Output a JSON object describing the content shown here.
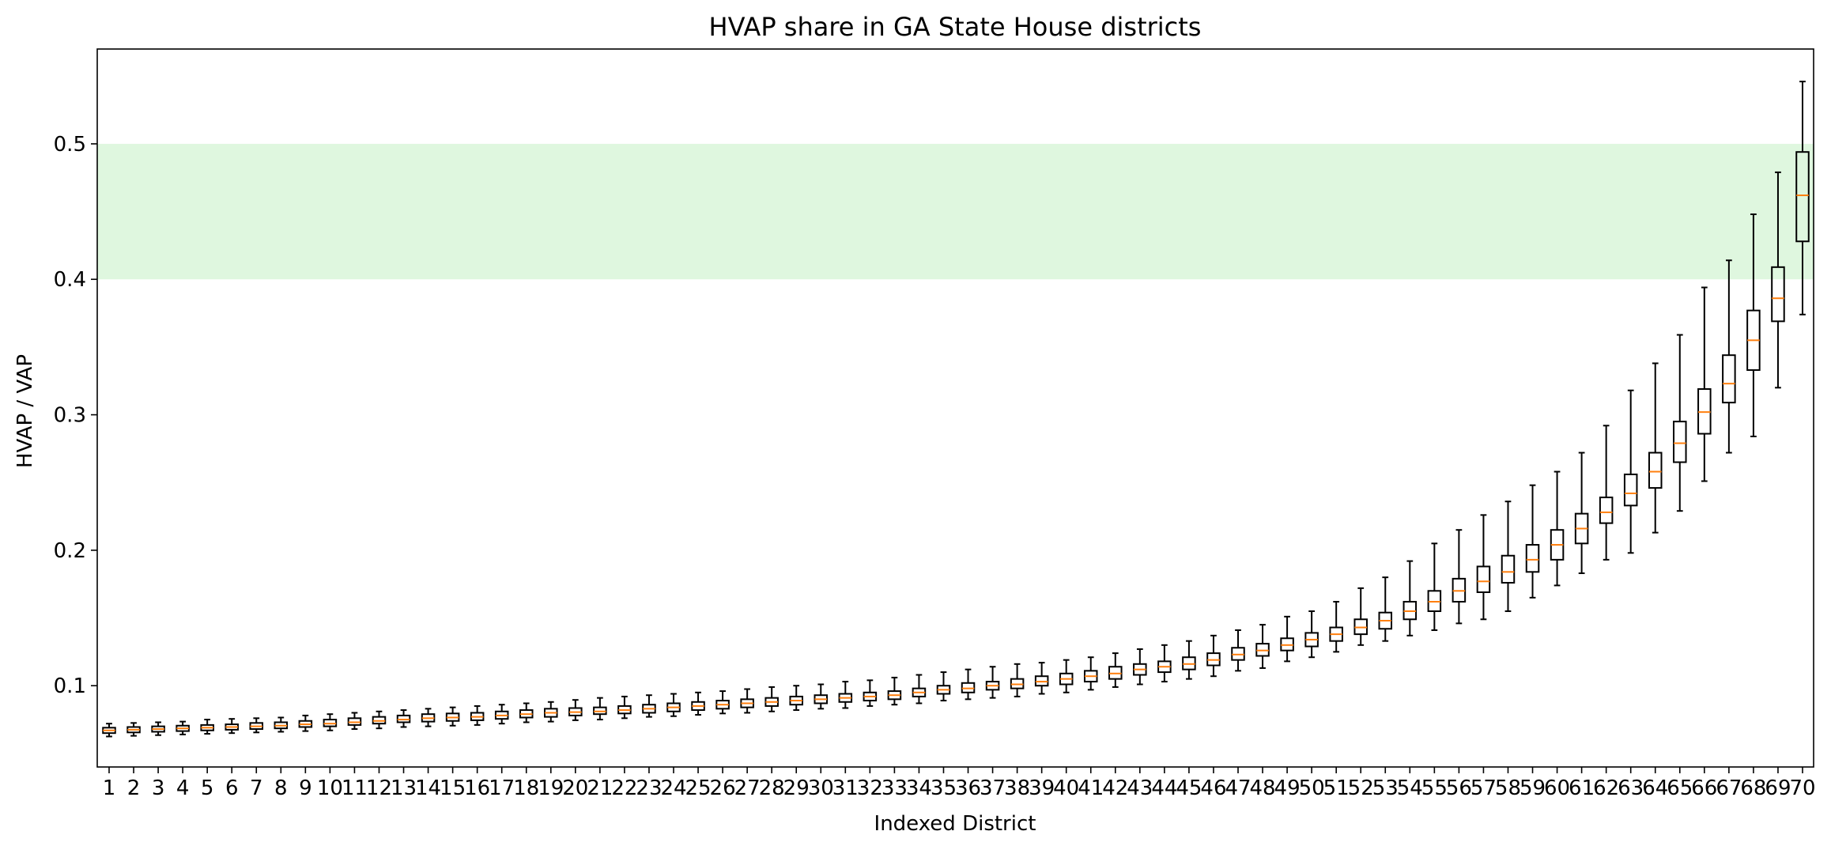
{
  "chart_data": {
    "type": "box",
    "title": "HVAP share in GA State House districts",
    "xlabel": "Indexed District",
    "ylabel": "HVAP / VAP",
    "ylim": [
      0.04,
      0.57
    ],
    "yticks": [
      0.1,
      0.2,
      0.3,
      0.4,
      0.5
    ],
    "ytick_labels": [
      "0.1",
      "0.2",
      "0.3",
      "0.4",
      "0.5"
    ],
    "highlight_band": {
      "from": 0.4,
      "to": 0.5,
      "color": "#dff7df"
    },
    "box_color": "#000000",
    "median_color": "#ff7f0e",
    "grid": false,
    "categories": [
      "1",
      "2",
      "3",
      "4",
      "5",
      "6",
      "7",
      "8",
      "9",
      "10",
      "11",
      "12",
      "13",
      "14",
      "15",
      "16",
      "17",
      "18",
      "19",
      "20",
      "21",
      "22",
      "23",
      "24",
      "25",
      "26",
      "27",
      "28",
      "29",
      "30",
      "31",
      "32",
      "33",
      "34",
      "35",
      "36",
      "37",
      "38",
      "39",
      "40",
      "41",
      "42",
      "43",
      "44",
      "45",
      "46",
      "47",
      "48",
      "49",
      "50",
      "51",
      "52",
      "53",
      "54",
      "55",
      "56",
      "57",
      "58",
      "59",
      "60",
      "61",
      "62",
      "63",
      "64",
      "65",
      "66",
      "67",
      "68",
      "69",
      "70"
    ],
    "medians": [
      0.067,
      0.0675,
      0.068,
      0.0685,
      0.069,
      0.0695,
      0.07,
      0.0705,
      0.0715,
      0.072,
      0.073,
      0.074,
      0.075,
      0.076,
      0.0765,
      0.077,
      0.078,
      0.079,
      0.08,
      0.0805,
      0.081,
      0.082,
      0.083,
      0.084,
      0.085,
      0.086,
      0.087,
      0.088,
      0.089,
      0.09,
      0.091,
      0.092,
      0.093,
      0.095,
      0.097,
      0.098,
      0.1,
      0.101,
      0.103,
      0.105,
      0.107,
      0.109,
      0.112,
      0.114,
      0.116,
      0.119,
      0.123,
      0.126,
      0.13,
      0.134,
      0.138,
      0.143,
      0.148,
      0.155,
      0.162,
      0.17,
      0.177,
      0.184,
      0.193,
      0.204,
      0.216,
      0.228,
      0.242,
      0.258,
      0.279,
      0.302,
      0.323,
      0.355,
      0.386,
      0.462
    ],
    "q1": [
      0.065,
      0.0655,
      0.066,
      0.0665,
      0.067,
      0.0675,
      0.068,
      0.0685,
      0.0695,
      0.07,
      0.071,
      0.072,
      0.073,
      0.0735,
      0.074,
      0.0745,
      0.0755,
      0.0765,
      0.077,
      0.078,
      0.079,
      0.0795,
      0.08,
      0.081,
      0.082,
      0.083,
      0.084,
      0.085,
      0.086,
      0.087,
      0.088,
      0.089,
      0.09,
      0.092,
      0.094,
      0.095,
      0.097,
      0.098,
      0.1,
      0.101,
      0.103,
      0.105,
      0.108,
      0.11,
      0.112,
      0.115,
      0.119,
      0.122,
      0.126,
      0.129,
      0.133,
      0.138,
      0.142,
      0.149,
      0.155,
      0.162,
      0.169,
      0.176,
      0.184,
      0.193,
      0.205,
      0.22,
      0.233,
      0.246,
      0.265,
      0.286,
      0.309,
      0.333,
      0.369,
      0.428
    ],
    "q3": [
      0.069,
      0.0695,
      0.07,
      0.0705,
      0.071,
      0.0715,
      0.0725,
      0.073,
      0.074,
      0.075,
      0.076,
      0.077,
      0.078,
      0.079,
      0.0795,
      0.08,
      0.081,
      0.082,
      0.083,
      0.0835,
      0.084,
      0.085,
      0.086,
      0.087,
      0.088,
      0.089,
      0.09,
      0.091,
      0.092,
      0.093,
      0.094,
      0.095,
      0.096,
      0.098,
      0.1,
      0.102,
      0.103,
      0.105,
      0.107,
      0.109,
      0.111,
      0.114,
      0.116,
      0.118,
      0.121,
      0.124,
      0.128,
      0.131,
      0.135,
      0.139,
      0.143,
      0.149,
      0.154,
      0.162,
      0.17,
      0.179,
      0.188,
      0.196,
      0.204,
      0.215,
      0.227,
      0.239,
      0.256,
      0.272,
      0.295,
      0.319,
      0.344,
      0.377,
      0.409,
      0.494
    ],
    "whislo": [
      0.0625,
      0.063,
      0.0635,
      0.064,
      0.0645,
      0.065,
      0.0655,
      0.066,
      0.0665,
      0.067,
      0.068,
      0.0685,
      0.0695,
      0.07,
      0.0705,
      0.071,
      0.072,
      0.073,
      0.0735,
      0.0745,
      0.075,
      0.076,
      0.077,
      0.0775,
      0.0785,
      0.0795,
      0.08,
      0.081,
      0.082,
      0.083,
      0.0835,
      0.085,
      0.086,
      0.087,
      0.089,
      0.09,
      0.091,
      0.092,
      0.094,
      0.095,
      0.097,
      0.099,
      0.101,
      0.103,
      0.105,
      0.107,
      0.111,
      0.113,
      0.118,
      0.121,
      0.125,
      0.13,
      0.133,
      0.137,
      0.141,
      0.146,
      0.149,
      0.155,
      0.165,
      0.174,
      0.183,
      0.193,
      0.198,
      0.213,
      0.229,
      0.251,
      0.272,
      0.284,
      0.32,
      0.374
    ],
    "whishi": [
      0.072,
      0.0725,
      0.073,
      0.0735,
      0.075,
      0.0755,
      0.076,
      0.0765,
      0.078,
      0.079,
      0.08,
      0.081,
      0.082,
      0.083,
      0.084,
      0.085,
      0.086,
      0.087,
      0.088,
      0.0895,
      0.091,
      0.092,
      0.093,
      0.094,
      0.095,
      0.096,
      0.0975,
      0.099,
      0.1,
      0.101,
      0.103,
      0.104,
      0.106,
      0.108,
      0.11,
      0.112,
      0.114,
      0.116,
      0.117,
      0.119,
      0.121,
      0.124,
      0.127,
      0.13,
      0.133,
      0.137,
      0.141,
      0.145,
      0.151,
      0.155,
      0.162,
      0.172,
      0.18,
      0.192,
      0.205,
      0.215,
      0.226,
      0.236,
      0.248,
      0.258,
      0.272,
      0.292,
      0.318,
      0.338,
      0.359,
      0.394,
      0.414,
      0.448,
      0.479,
      0.546
    ]
  }
}
